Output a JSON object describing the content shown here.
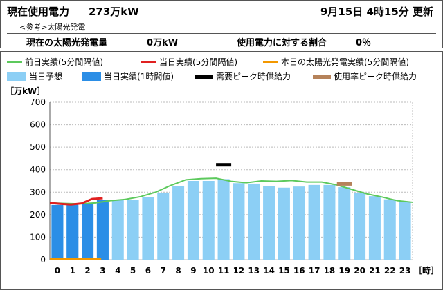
{
  "header": {
    "current_label": "現在使用電力",
    "current_value": "273万kW",
    "update_time": "9月15日 4時15分 更新",
    "ref_label": "<参考>太陽光発電",
    "solar_label": "現在の太陽光発電量",
    "solar_value": "0万kW",
    "ratio_label": "使用電力に対する割合",
    "ratio_value": "0％"
  },
  "legend": {
    "prev_day": "前日実績(5分間隔値)",
    "today_5min": "当日実績(5分間隔値)",
    "solar_today": "本日の太陽光発電実績(5分間隔値)",
    "forecast": "当日予想",
    "today_hourly": "当日実績(1時間値)",
    "demand_peak": "需要ピーク時供給力",
    "usage_peak": "使用率ピーク時供給力"
  },
  "colors": {
    "prev_day": "#5cc95c",
    "today_5min": "#e02020",
    "solar": "#f39800",
    "forecast": "#8ccff5",
    "today_hourly": "#2b8ee6",
    "demand_peak": "#000000",
    "usage_peak": "#b5825a"
  },
  "chart_data": {
    "type": "bar",
    "y_unit_label": "［万kW］",
    "x_unit_label": "［時］",
    "ylim": [
      0,
      700
    ],
    "yticks": [
      0,
      100,
      200,
      300,
      400,
      500,
      600,
      700
    ],
    "categories": [
      "0",
      "1",
      "2",
      "3",
      "4",
      "5",
      "6",
      "7",
      "8",
      "9",
      "10",
      "11",
      "12",
      "13",
      "14",
      "15",
      "16",
      "17",
      "18",
      "19",
      "20",
      "21",
      "22",
      "23"
    ],
    "series": [
      {
        "name": "当日予想",
        "values": [
          240,
          240,
          240,
          250,
          265,
          265,
          278,
          298,
          328,
          350,
          350,
          358,
          340,
          338,
          328,
          320,
          325,
          332,
          332,
          322,
          298,
          282,
          268,
          258
        ]
      },
      {
        "name": "当日実績(1時間値)",
        "values": [
          243,
          245,
          246,
          266,
          null,
          null,
          null,
          null,
          null,
          null,
          null,
          null,
          null,
          null,
          null,
          null,
          null,
          null,
          null,
          null,
          null,
          null,
          null,
          null
        ]
      }
    ],
    "prev_day_line": [
      252,
      250,
      248,
      252,
      262,
      268,
      280,
      300,
      330,
      355,
      360,
      362,
      348,
      342,
      350,
      348,
      352,
      345,
      345,
      332,
      312,
      292,
      278,
      262,
      255
    ],
    "today_line": [
      252,
      248,
      245,
      250,
      270,
      273
    ],
    "solar_line": [
      0,
      0,
      0,
      0,
      0
    ],
    "demand_peak": {
      "hour": 11,
      "value": 420
    },
    "usage_peak": {
      "hour": 19,
      "value": 335
    }
  }
}
